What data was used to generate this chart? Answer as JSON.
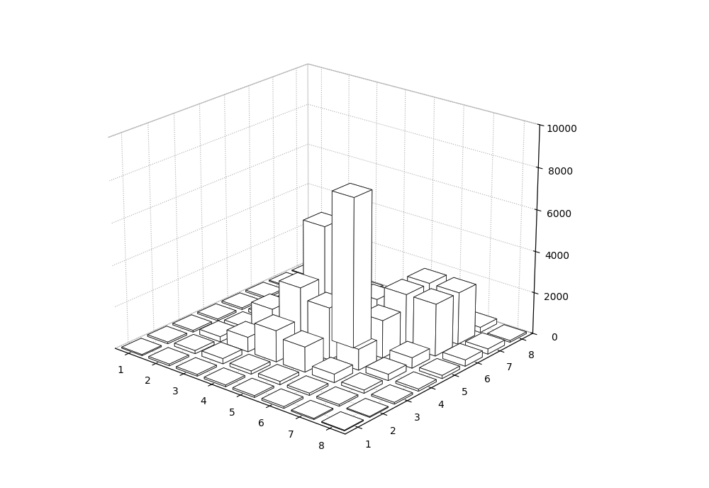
{
  "matrix": [
    [
      50,
      80,
      80,
      80,
      80,
      80,
      50,
      30
    ],
    [
      80,
      150,
      250,
      150,
      150,
      100,
      80,
      40
    ],
    [
      80,
      250,
      700,
      1500,
      1200,
      400,
      150,
      80
    ],
    [
      80,
      150,
      1500,
      3000,
      2500,
      1000,
      300,
      100
    ],
    [
      80,
      150,
      1200,
      5400,
      7200,
      1800,
      500,
      150
    ],
    [
      80,
      100,
      400,
      1000,
      1800,
      2500,
      2500,
      300
    ],
    [
      50,
      80,
      150,
      300,
      500,
      2500,
      2500,
      250
    ],
    [
      30,
      40,
      80,
      100,
      150,
      300,
      250,
      80
    ]
  ],
  "zlim": [
    0,
    10000
  ],
  "zticks": [
    0,
    2000,
    4000,
    6000,
    8000,
    10000
  ],
  "xticks": [
    1,
    2,
    3,
    4,
    5,
    6,
    7,
    8
  ],
  "yticks": [
    1,
    2,
    3,
    4,
    5,
    6,
    7,
    8
  ],
  "bar_color": "#ffffff",
  "edge_color": "#1a1a1a",
  "background_color": "#ffffff",
  "grid_color": "#aaaaaa",
  "elev": 22,
  "azim": -50,
  "bar_width": 0.75,
  "bar_depth": 0.75
}
